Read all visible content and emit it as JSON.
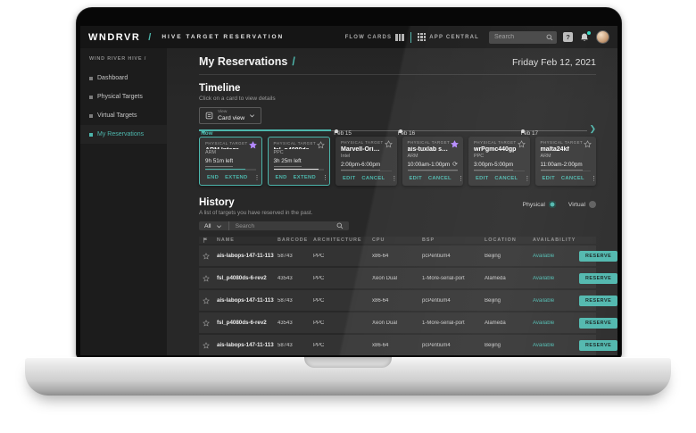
{
  "brand": {
    "logo": "WNDRVR",
    "separator": "/",
    "product_name": "HIVE TARGET RESERVATION"
  },
  "navbar": {
    "flow_cards_label": "FLOW CARDS",
    "app_central_label": "APP CENTRAL",
    "search_placeholder": "Search"
  },
  "sidebar": {
    "header": "WIND RIVER HIVE /",
    "items": [
      {
        "label": "Dashboard",
        "active": false
      },
      {
        "label": "Physical Targets",
        "active": false
      },
      {
        "label": "Virtual Targets",
        "active": false
      },
      {
        "label": "My Reservations",
        "active": true
      }
    ]
  },
  "page": {
    "title": "My Reservations",
    "separator": "/",
    "date": "Friday Feb 12, 2021"
  },
  "timeline": {
    "title": "Timeline",
    "subtitle": "Click on a card to view details",
    "view_selector": {
      "label": "View",
      "value": "Card view"
    },
    "progress_line_pct": 34,
    "markers": [
      {
        "label": "Now",
        "pos_pct": 0.5,
        "accent": true
      },
      {
        "label": "Feb 15",
        "pos_pct": 34,
        "accent": false
      },
      {
        "label": "Feb 16",
        "pos_pct": 50,
        "accent": false
      },
      {
        "label": "Feb 17",
        "pos_pct": 81,
        "accent": false
      }
    ],
    "cards": [
      {
        "type_label": "PHYSICAL TARGET",
        "title": "ARM Integrator...",
        "subtitle": "ARM",
        "time": "9h 51m left",
        "starred": true,
        "active": true,
        "recurring": false,
        "progress_pct": 80,
        "progress_color": "#4DB6AC",
        "actions": [
          "END",
          "EXTEND"
        ]
      },
      {
        "type_label": "PHYSICAL TARGET",
        "title": "fsl_p4080ds",
        "subtitle": "PPC",
        "time": "3h 25m left",
        "starred": false,
        "active": true,
        "recurring": false,
        "progress_pct": 90,
        "progress_color": "#E6E6E6",
        "actions": [
          "END",
          "EXTEND"
        ]
      },
      {
        "type_label": "PHYSICAL TARGET",
        "title": "Marvell-OrionI...",
        "subtitle": "Intel",
        "time": "2:00pm-6:00pm",
        "starred": false,
        "active": false,
        "recurring": false,
        "actions": [
          "EDIT",
          "CANCEL"
        ]
      },
      {
        "type_label": "PHYSICAL TARGET",
        "title": "ais-tuxlab serv...",
        "subtitle": "ARM",
        "time": "10:00am-1:00pm",
        "starred": true,
        "active": false,
        "recurring": true,
        "actions": [
          "EDIT",
          "CANCEL"
        ]
      },
      {
        "type_label": "PHYSICAL TARGET",
        "title": "wrPgmc440gp",
        "subtitle": "PPC",
        "time": "3:00pm-5:00pm",
        "starred": false,
        "active": false,
        "recurring": false,
        "actions": [
          "EDIT",
          "CANCEL"
        ]
      },
      {
        "type_label": "PHYSICAL TARGET",
        "title": "malta24kf",
        "subtitle": "ARM",
        "time": "11:00am-2:00pm",
        "starred": false,
        "active": false,
        "recurring": false,
        "actions": [
          "EDIT",
          "CANCEL"
        ]
      }
    ]
  },
  "history": {
    "title": "History",
    "subtitle": "A list of targets you have reserved in the past.",
    "filter": {
      "all_label": "All",
      "search_placeholder": "Search"
    },
    "toggles": [
      {
        "label": "Physical",
        "selected": true
      },
      {
        "label": "Virtual",
        "selected": false
      }
    ],
    "table": {
      "headers": [
        "NAME",
        "BARCODE",
        "ARCHITECTURE",
        "CPU",
        "BSP",
        "LOCATION",
        "AVAILABILITY"
      ],
      "reserve_label": "RESERVE",
      "rows": [
        {
          "name": "ais-labops-147-11-113",
          "barcode": "58743",
          "architecture": "PPC",
          "cpu": "x86-64",
          "bsp": "pcPentium4",
          "location": "Beijing",
          "availability": "Available"
        },
        {
          "name": "fsl_p4080ds-6-rev2",
          "barcode": "43543",
          "architecture": "PPC",
          "cpu": "Xeon Dual",
          "bsp": "1-More-serial-port",
          "location": "Alameda",
          "availability": "Available"
        },
        {
          "name": "ais-labops-147-11-113",
          "barcode": "58743",
          "architecture": "PPC",
          "cpu": "x86-64",
          "bsp": "pcPentium4",
          "location": "Beijing",
          "availability": "Available"
        },
        {
          "name": "fsl_p4080ds-6-rev2",
          "barcode": "43543",
          "architecture": "PPC",
          "cpu": "Xeon Dual",
          "bsp": "1-More-serial-port",
          "location": "Alameda",
          "availability": "Available"
        },
        {
          "name": "ais-labops-147-11-113",
          "barcode": "58743",
          "architecture": "PPC",
          "cpu": "x86-64",
          "bsp": "pcPentium4",
          "location": "Beijing",
          "availability": "Available"
        }
      ]
    }
  },
  "colors": {
    "accent_teal": "#4DB6AC",
    "star_purple": "#B388FF",
    "available_text": "#4DB6AC"
  }
}
